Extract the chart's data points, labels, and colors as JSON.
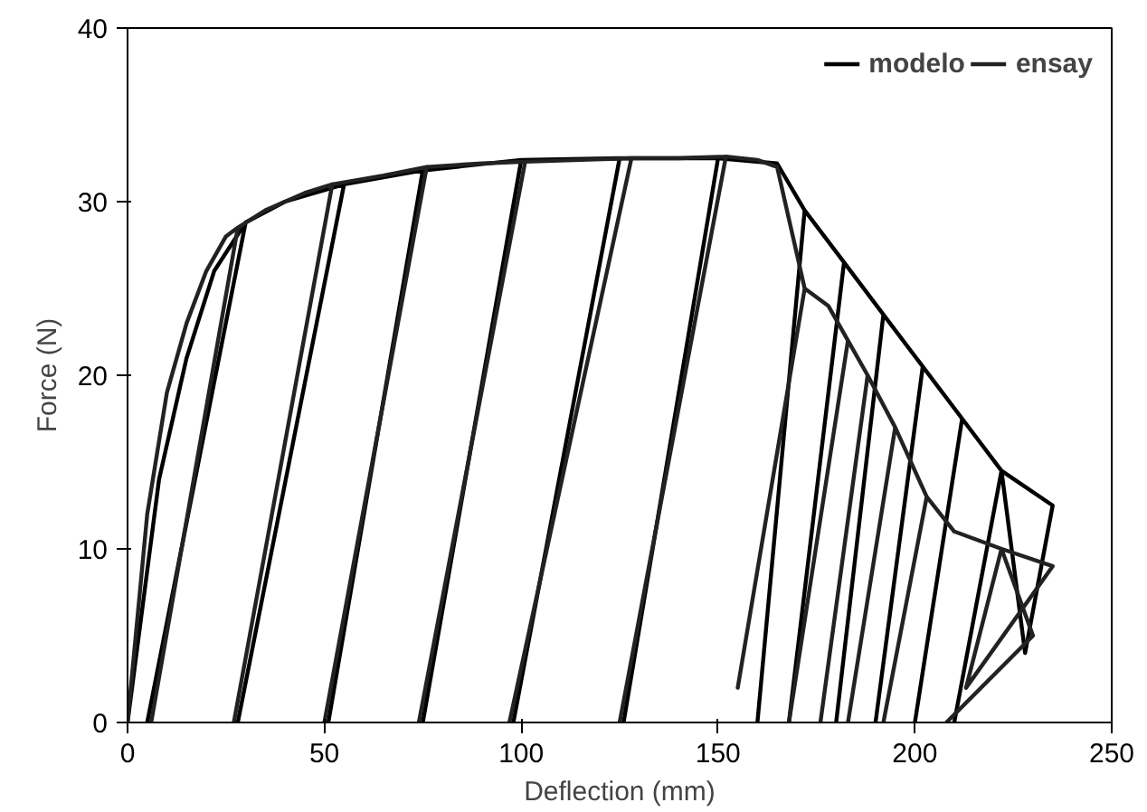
{
  "chart_data": {
    "type": "line",
    "xlabel": "Deflection (mm)",
    "ylabel": "Force (N)",
    "xlim": [
      0,
      250
    ],
    "ylim": [
      0,
      40
    ],
    "xticks": [
      0,
      50,
      100,
      150,
      200,
      250
    ],
    "yticks": [
      0,
      10,
      20,
      30,
      40
    ],
    "grid": false,
    "legend": "top right",
    "marker": "none",
    "line_style": "solid",
    "series": [
      {
        "name": "modelo",
        "color": "#000000",
        "x": [
          0,
          8,
          15,
          22,
          30,
          5,
          30,
          40,
          55,
          28,
          55,
          75,
          51,
          75,
          100,
          75,
          100,
          125,
          98,
          125,
          150,
          126,
          150,
          165,
          172,
          160,
          172,
          182,
          168,
          182,
          192,
          180,
          192,
          202,
          190,
          202,
          212,
          200,
          212,
          222,
          210,
          222,
          235,
          228,
          222
        ],
        "values": [
          0,
          14,
          21,
          26,
          28.8,
          0,
          28.8,
          30,
          31,
          0,
          31,
          31.8,
          0,
          31.8,
          32.4,
          0,
          32.4,
          32.5,
          0,
          32.5,
          32.5,
          0,
          32.5,
          32.2,
          29.5,
          0,
          29.5,
          26.5,
          0,
          26.5,
          23.5,
          0,
          23.5,
          20.5,
          0,
          20.5,
          17.5,
          0,
          17.5,
          14.5,
          0,
          14.5,
          12.5,
          4,
          14.5
        ]
      },
      {
        "name": "ensay",
        "color": "#222222",
        "x": [
          0,
          5,
          10,
          15,
          20,
          25,
          28,
          6,
          28,
          35,
          45,
          52,
          27,
          52,
          65,
          76,
          50,
          76,
          90,
          101,
          74,
          101,
          115,
          128,
          97,
          128,
          140,
          152,
          125,
          152,
          160,
          165,
          170,
          172,
          155,
          172,
          178,
          183,
          168,
          183,
          188,
          176,
          188,
          195,
          183,
          195,
          203,
          192,
          203,
          210,
          222,
          235,
          213,
          222,
          230,
          208
        ],
        "values": [
          0,
          12,
          19,
          23,
          26,
          28,
          28.5,
          0,
          28.5,
          29.5,
          30.5,
          31,
          0,
          31,
          31.5,
          32,
          0,
          32,
          32.2,
          32.3,
          0,
          32.3,
          32.4,
          32.5,
          0,
          32.5,
          32.5,
          32.6,
          0,
          32.6,
          32.4,
          32,
          27,
          25,
          2,
          25,
          24,
          22,
          0,
          22,
          20,
          0,
          20,
          17,
          0,
          17,
          13,
          0,
          13,
          11,
          10,
          9,
          2,
          10,
          5,
          0
        ]
      }
    ]
  }
}
